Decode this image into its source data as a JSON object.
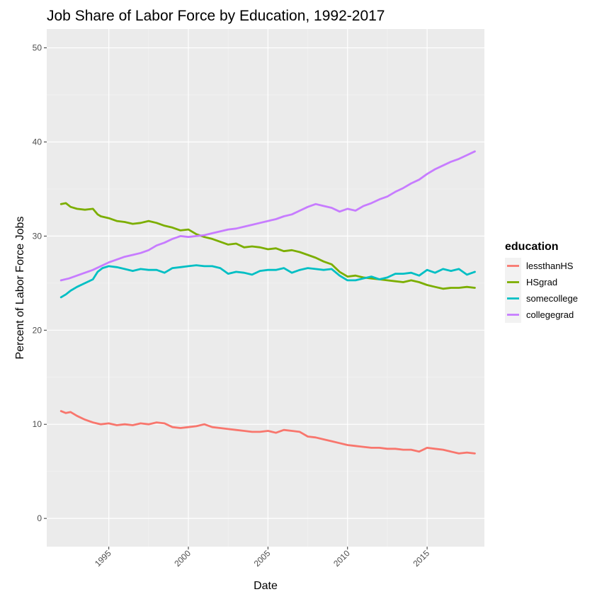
{
  "chart_data": {
    "type": "line",
    "title": "Job Share of Labor Force by Education, 1992-2017",
    "xlabel": "Date",
    "ylabel": "Percent of Labor Force Jobs",
    "x_unit": "year",
    "xlim": [
      1991.1,
      2018.6
    ],
    "ylim": [
      -3,
      52
    ],
    "x_ticks": [
      1995,
      2000,
      2005,
      2010,
      2015
    ],
    "x_tick_labels": [
      "1995",
      "2000",
      "2005",
      "2010",
      "2015"
    ],
    "y_ticks": [
      0,
      10,
      20,
      30,
      40,
      50
    ],
    "y_tick_labels": [
      "0",
      "10",
      "20",
      "30",
      "40",
      "50"
    ],
    "grid": true,
    "panel_background": "#ebebeb",
    "legend": {
      "title": "education",
      "position": "right",
      "entries": [
        "lessthanHS",
        "HSgrad",
        "somecollege",
        "collegegrad"
      ]
    },
    "series": [
      {
        "name": "lessthanHS",
        "color": "#F8766D",
        "x": [
          1992.0,
          1992.3,
          1992.6,
          1993.0,
          1993.5,
          1994.0,
          1994.5,
          1995.0,
          1995.5,
          1996.0,
          1996.5,
          1997.0,
          1997.5,
          1998.0,
          1998.5,
          1999.0,
          1999.5,
          2000.0,
          2000.5,
          2001.0,
          2001.5,
          2002.0,
          2002.5,
          2003.0,
          2003.5,
          2004.0,
          2004.5,
          2005.0,
          2005.5,
          2006.0,
          2006.5,
          2007.0,
          2007.5,
          2008.0,
          2008.5,
          2009.0,
          2009.5,
          2010.0,
          2010.5,
          2011.0,
          2011.5,
          2012.0,
          2012.5,
          2013.0,
          2013.5,
          2014.0,
          2014.5,
          2015.0,
          2015.5,
          2016.0,
          2016.5,
          2017.0,
          2017.5,
          2018.0
        ],
        "values": [
          11.4,
          11.2,
          11.3,
          10.9,
          10.5,
          10.2,
          10.0,
          10.1,
          9.9,
          10.0,
          9.9,
          10.1,
          10.0,
          10.2,
          10.1,
          9.7,
          9.6,
          9.7,
          9.8,
          10.0,
          9.7,
          9.6,
          9.5,
          9.4,
          9.3,
          9.2,
          9.2,
          9.3,
          9.1,
          9.4,
          9.3,
          9.2,
          8.7,
          8.6,
          8.4,
          8.2,
          8.0,
          7.8,
          7.7,
          7.6,
          7.5,
          7.5,
          7.4,
          7.4,
          7.3,
          7.3,
          7.1,
          7.5,
          7.4,
          7.3,
          7.1,
          6.9,
          7.0,
          6.9
        ]
      },
      {
        "name": "HSgrad",
        "color": "#7CAE00",
        "x": [
          1992.0,
          1992.3,
          1992.6,
          1993.0,
          1993.5,
          1994.0,
          1994.3,
          1994.5,
          1995.0,
          1995.5,
          1996.0,
          1996.5,
          1997.0,
          1997.5,
          1998.0,
          1998.5,
          1999.0,
          1999.5,
          2000.0,
          2000.5,
          2001.0,
          2001.5,
          2002.0,
          2002.5,
          2003.0,
          2003.5,
          2004.0,
          2004.5,
          2005.0,
          2005.5,
          2006.0,
          2006.5,
          2007.0,
          2007.5,
          2008.0,
          2008.5,
          2009.0,
          2009.5,
          2010.0,
          2010.5,
          2011.0,
          2011.5,
          2012.0,
          2012.5,
          2013.0,
          2013.5,
          2014.0,
          2014.5,
          2015.0,
          2015.5,
          2016.0,
          2016.5,
          2017.0,
          2017.5,
          2018.0
        ],
        "values": [
          33.4,
          33.5,
          33.1,
          32.9,
          32.8,
          32.9,
          32.3,
          32.1,
          31.9,
          31.6,
          31.5,
          31.3,
          31.4,
          31.6,
          31.4,
          31.1,
          30.9,
          30.6,
          30.7,
          30.2,
          29.9,
          29.7,
          29.4,
          29.1,
          29.2,
          28.8,
          28.9,
          28.8,
          28.6,
          28.7,
          28.4,
          28.5,
          28.3,
          28.0,
          27.7,
          27.3,
          27.0,
          26.2,
          25.7,
          25.8,
          25.6,
          25.5,
          25.4,
          25.3,
          25.2,
          25.1,
          25.3,
          25.1,
          24.8,
          24.6,
          24.4,
          24.5,
          24.5,
          24.6,
          24.5
        ]
      },
      {
        "name": "somecollege",
        "color": "#00BFC4",
        "x": [
          1992.0,
          1992.3,
          1992.6,
          1993.0,
          1993.5,
          1994.0,
          1994.3,
          1994.6,
          1995.0,
          1995.5,
          1996.0,
          1996.5,
          1997.0,
          1997.5,
          1998.0,
          1998.5,
          1999.0,
          1999.5,
          2000.0,
          2000.5,
          2001.0,
          2001.5,
          2002.0,
          2002.5,
          2003.0,
          2003.5,
          2004.0,
          2004.5,
          2005.0,
          2005.5,
          2006.0,
          2006.5,
          2007.0,
          2007.5,
          2008.0,
          2008.5,
          2009.0,
          2009.5,
          2010.0,
          2010.5,
          2011.0,
          2011.5,
          2012.0,
          2012.5,
          2013.0,
          2013.5,
          2014.0,
          2014.5,
          2015.0,
          2015.5,
          2016.0,
          2016.5,
          2017.0,
          2017.5,
          2018.0
        ],
        "values": [
          23.5,
          23.8,
          24.2,
          24.6,
          25.0,
          25.4,
          26.2,
          26.6,
          26.8,
          26.7,
          26.5,
          26.3,
          26.5,
          26.4,
          26.4,
          26.1,
          26.6,
          26.7,
          26.8,
          26.9,
          26.8,
          26.8,
          26.6,
          26.0,
          26.2,
          26.1,
          25.9,
          26.3,
          26.4,
          26.4,
          26.6,
          26.1,
          26.4,
          26.6,
          26.5,
          26.4,
          26.5,
          25.8,
          25.3,
          25.3,
          25.5,
          25.7,
          25.4,
          25.6,
          26.0,
          26.0,
          26.1,
          25.8,
          26.4,
          26.1,
          26.5,
          26.3,
          26.5,
          25.9,
          26.2
        ]
      },
      {
        "name": "collegegrad",
        "color": "#C77CFF",
        "x": [
          1992.0,
          1992.5,
          1993.0,
          1993.5,
          1994.0,
          1994.5,
          1995.0,
          1995.5,
          1996.0,
          1996.5,
          1997.0,
          1997.5,
          1998.0,
          1998.5,
          1999.0,
          1999.5,
          2000.0,
          2000.5,
          2001.0,
          2001.5,
          2002.0,
          2002.5,
          2003.0,
          2003.5,
          2004.0,
          2004.5,
          2005.0,
          2005.5,
          2006.0,
          2006.5,
          2007.0,
          2007.5,
          2008.0,
          2008.5,
          2009.0,
          2009.5,
          2010.0,
          2010.5,
          2011.0,
          2011.5,
          2012.0,
          2012.5,
          2013.0,
          2013.5,
          2014.0,
          2014.5,
          2015.0,
          2015.5,
          2016.0,
          2016.5,
          2017.0,
          2017.5,
          2018.0
        ],
        "values": [
          25.3,
          25.5,
          25.8,
          26.1,
          26.4,
          26.8,
          27.2,
          27.5,
          27.8,
          28.0,
          28.2,
          28.5,
          29.0,
          29.3,
          29.7,
          30.0,
          29.9,
          30.0,
          30.1,
          30.3,
          30.5,
          30.7,
          30.8,
          31.0,
          31.2,
          31.4,
          31.6,
          31.8,
          32.1,
          32.3,
          32.7,
          33.1,
          33.4,
          33.2,
          33.0,
          32.6,
          32.9,
          32.7,
          33.2,
          33.5,
          33.9,
          34.2,
          34.7,
          35.1,
          35.6,
          36.0,
          36.6,
          37.1,
          37.5,
          37.9,
          38.2,
          38.6,
          39.0
        ]
      }
    ]
  }
}
